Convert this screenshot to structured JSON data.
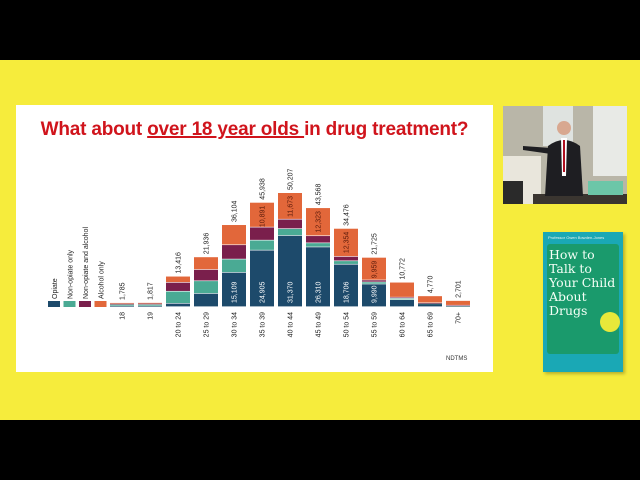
{
  "slide": {
    "title_pre": "What about ",
    "title_underlined": "over 18 year olds ",
    "title_post": "in drug treatment?",
    "source": "NDTMS"
  },
  "book": {
    "author": "Professor Owen Bowden-Jones",
    "title": "How to Talk to Your Child About Drugs"
  },
  "colors": {
    "background": "#f6ec3c",
    "title": "#d0141c",
    "opiate": "#1d4a6b",
    "non_opiate_only": "#4aaa94",
    "non_opiate_and_alcohol": "#7a1f4c",
    "alcohol_only": "#e2673a"
  },
  "chart_data": {
    "type": "bar",
    "stacked": true,
    "title": "What about over 18 year olds in drug treatment?",
    "legend_position": "left",
    "grid": false,
    "categories": [
      "18",
      "19",
      "20 to 24",
      "25 to 29",
      "30 to 34",
      "35 to 39",
      "40 to 44",
      "45 to 49",
      "50 to 54",
      "55 to 59",
      "60 to 64",
      "65 to 69",
      "70+"
    ],
    "totals": [
      1785,
      1817,
      13416,
      21936,
      36104,
      45938,
      50207,
      43568,
      34476,
      21725,
      10772,
      4770,
      2701
    ],
    "total_labels": [
      "1,785",
      "1,817",
      "13,416",
      "21,936",
      "36,104",
      "45,938",
      "50,207",
      "43,568",
      "34,476",
      "21,725",
      "10,772",
      "4,770",
      "2,701"
    ],
    "series": [
      {
        "name": "Opiate",
        "values": [
          300,
          300,
          1500,
          5850,
          15109,
          24905,
          31370,
          26310,
          18706,
          9990,
          3100,
          1300,
          400
        ],
        "labels": [
          "",
          "",
          "",
          "",
          "15,109",
          "24,905",
          "31,370",
          "26,310",
          "18,706",
          "9,990",
          "",
          "",
          ""
        ]
      },
      {
        "name": "Non-opiate only",
        "values": [
          700,
          700,
          5300,
          5550,
          5860,
          4400,
          3000,
          1800,
          1500,
          900,
          600,
          200,
          100
        ],
        "labels": [
          "",
          "",
          "",
          "",
          "",
          "",
          "",
          "",
          "",
          "",
          "",
          "",
          ""
        ]
      },
      {
        "name": "Non-opiate and alcohol",
        "values": [
          400,
          450,
          3900,
          4970,
          6300,
          5742,
          4164,
          3135,
          1916,
          876,
          500,
          200,
          150
        ],
        "labels": [
          "",
          "",
          "",
          "",
          "",
          "",
          "",
          "",
          "",
          "",
          "",
          "",
          ""
        ]
      },
      {
        "name": "Alcohol only",
        "values": [
          385,
          367,
          2716,
          5566,
          8835,
          10891,
          11673,
          12323,
          12354,
          9959,
          6572,
          3070,
          2051
        ],
        "labels": [
          "",
          "",
          "",
          "",
          "",
          "10,891",
          "11,673",
          "12,323",
          "12,354",
          "9,959",
          "",
          "",
          ""
        ]
      }
    ],
    "ylim": [
      0,
      52000
    ]
  }
}
